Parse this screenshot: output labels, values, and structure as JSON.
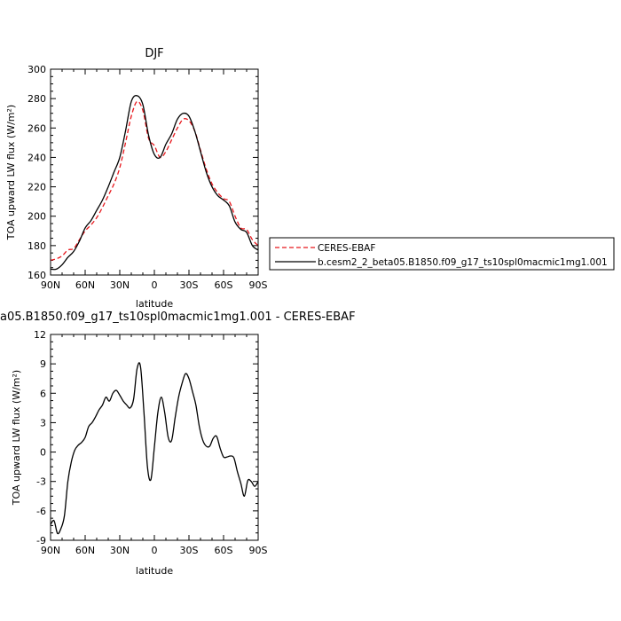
{
  "chart_data": [
    {
      "type": "line",
      "title": "DJF",
      "xlabel": "latitude",
      "ylabel": "TOA upward LW flux (W/m²)",
      "x_direction": "north-to-south",
      "xlim": [
        90,
        -90
      ],
      "ylim": [
        160,
        300
      ],
      "x_ticks": [
        90,
        60,
        30,
        0,
        -30,
        -60,
        -90
      ],
      "x_tick_labels": [
        "90N",
        "60N",
        "30N",
        "0",
        "30S",
        "60S",
        "90S"
      ],
      "y_ticks": [
        160,
        180,
        200,
        220,
        240,
        260,
        280,
        300
      ],
      "y_tick_labels": [
        "160",
        "180",
        "200",
        "220",
        "240",
        "260",
        "280",
        "300"
      ],
      "legend": {
        "placement": "right",
        "entries": [
          {
            "label": "CERES-EBAF",
            "color": "#e8171c",
            "dash": "dashed"
          },
          {
            "label": "b.cesm2_2_beta05.B1850.f09_g17_ts10spl0macmic1mg1.001",
            "color": "#000000",
            "dash": "solid"
          }
        ]
      },
      "series": [
        {
          "name": "CERES-EBAF",
          "color": "#e8171c",
          "dash": "dashed",
          "x": [
            90,
            85,
            80,
            75,
            70,
            65,
            60,
            55,
            50,
            45,
            40,
            35,
            30,
            25,
            20,
            15,
            10,
            5,
            0,
            -5,
            -10,
            -15,
            -20,
            -25,
            -30,
            -35,
            -40,
            -45,
            -50,
            -55,
            -60,
            -65,
            -70,
            -75,
            -80,
            -85,
            -90
          ],
          "values": [
            170,
            171,
            173,
            177,
            178,
            184,
            190,
            194,
            199,
            206,
            214,
            222,
            233,
            250,
            268,
            278,
            272,
            253,
            248,
            240,
            244,
            252,
            260,
            266,
            265,
            258,
            245,
            232,
            222,
            216,
            212,
            210,
            200,
            192,
            191,
            184,
            180
          ]
        },
        {
          "name": "b.cesm2_2_beta05.B1850.f09_g17_ts10spl0macmic1mg1.001",
          "color": "#000000",
          "dash": "solid",
          "x": [
            90,
            85,
            80,
            75,
            70,
            65,
            60,
            55,
            50,
            45,
            40,
            35,
            30,
            25,
            20,
            15,
            10,
            5,
            0,
            -5,
            -10,
            -15,
            -20,
            -25,
            -30,
            -35,
            -40,
            -45,
            -50,
            -55,
            -60,
            -65,
            -70,
            -75,
            -80,
            -85,
            -90
          ],
          "values": [
            164,
            164,
            167,
            172,
            176,
            183,
            192,
            197,
            204,
            211,
            220,
            230,
            240,
            258,
            278,
            282,
            276,
            255,
            242,
            240,
            249,
            256,
            266,
            270,
            268,
            258,
            244,
            230,
            220,
            214,
            211,
            207,
            196,
            191,
            189,
            180,
            177
          ]
        }
      ]
    },
    {
      "type": "line",
      "title": "a05.B1850.f09_g17_ts10spl0macmic1mg1.001 - CERES-EBAF",
      "xlabel": "latitude",
      "ylabel": "TOA upward LW flux (W/m²)",
      "x_direction": "north-to-south",
      "xlim": [
        90,
        -90
      ],
      "ylim": [
        -9,
        12
      ],
      "x_ticks": [
        90,
        60,
        30,
        0,
        -30,
        -60,
        -90
      ],
      "x_tick_labels": [
        "90N",
        "60N",
        "30N",
        "0",
        "30S",
        "60S",
        "90S"
      ],
      "y_ticks": [
        -9,
        -6,
        -3,
        0,
        3,
        6,
        9,
        12
      ],
      "y_tick_labels": [
        "-9",
        "-6",
        "-3",
        "0",
        "3",
        "6",
        "9",
        "12"
      ],
      "series": [
        {
          "color": "#000000",
          "dash": "solid",
          "x": [
            90,
            87,
            84,
            81,
            78,
            75,
            72,
            69,
            66,
            63,
            60,
            57,
            54,
            51,
            48,
            45,
            42,
            39,
            36,
            33,
            30,
            27,
            24,
            21,
            18,
            15,
            12,
            9,
            6,
            3,
            0,
            -3,
            -6,
            -9,
            -12,
            -15,
            -18,
            -21,
            -24,
            -27,
            -30,
            -33,
            -36,
            -39,
            -42,
            -45,
            -48,
            -51,
            -54,
            -57,
            -60,
            -63,
            -66,
            -69,
            -72,
            -75,
            -78,
            -81,
            -84,
            -87,
            -90
          ],
          "values": [
            -7.4,
            -7.0,
            -8.3,
            -7.8,
            -6.5,
            -3.0,
            -1.0,
            0.2,
            0.7,
            1.0,
            1.5,
            2.6,
            3.0,
            3.6,
            4.3,
            4.8,
            5.6,
            5.2,
            6.0,
            6.3,
            5.8,
            5.2,
            4.8,
            4.5,
            5.4,
            8.5,
            8.7,
            4.0,
            -1.5,
            -2.8,
            0.5,
            4.0,
            5.6,
            4.0,
            1.5,
            1.2,
            3.5,
            5.6,
            7.0,
            8.0,
            7.5,
            6.2,
            4.8,
            2.6,
            1.2,
            0.6,
            0.6,
            1.4,
            1.6,
            0.4,
            -0.5,
            -0.5,
            -0.4,
            -0.6,
            -2.0,
            -3.2,
            -4.5,
            -2.9,
            -3.0,
            -3.5,
            -3.0
          ]
        }
      ]
    }
  ]
}
